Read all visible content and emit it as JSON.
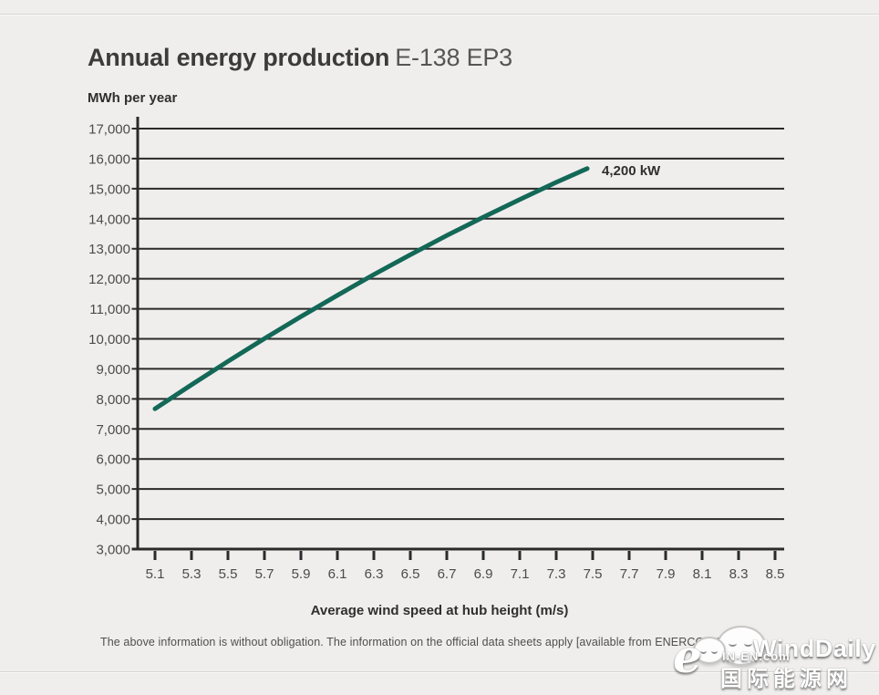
{
  "header": {
    "title_main": "Annual energy production",
    "title_model": "E-138 EP3"
  },
  "chart_data": {
    "type": "line",
    "title": "Annual energy production E-138 EP3",
    "unit_label": "MWh per year",
    "xlabel": "Average wind speed at hub height (m/s)",
    "ylabel": "MWh per year",
    "xlim": [
      5.1,
      8.5
    ],
    "ylim": [
      3000,
      17000
    ],
    "x_tick_start": 5.1,
    "x_tick_step": 0.2,
    "x_tick_count": 18,
    "y_tick_start": 3000,
    "y_tick_step": 1000,
    "y_tick_count": 15,
    "grid": "horizontal",
    "legend_position": "inline-annotation",
    "colors": {
      "line": "#136857",
      "grid": "#2a2a2a",
      "tick_label": "#4b4b4b",
      "annotation": "#2f2f2f"
    },
    "series": [
      {
        "name": "4,200 kW",
        "annotation": "4,200 kW",
        "points": [
          [
            5.1,
            7670
          ],
          [
            5.3,
            8470
          ],
          [
            5.5,
            9250
          ],
          [
            5.7,
            10010
          ],
          [
            5.9,
            10740
          ],
          [
            6.1,
            11450
          ],
          [
            6.3,
            12140
          ],
          [
            6.5,
            12800
          ],
          [
            6.7,
            13440
          ],
          [
            6.9,
            14050
          ],
          [
            7.1,
            14640
          ],
          [
            7.3,
            15210
          ],
          [
            7.47,
            15670
          ]
        ]
      }
    ]
  },
  "footnote": "The above information is without obligation. The information on the official data sheets apply [available from ENERCON Sales.]",
  "watermark": {
    "icon": "wechat-chat-bubbles",
    "brand": "WindDaily",
    "logo_letter": "e",
    "site": "IN-EN.com",
    "cn": "国际能源网"
  }
}
